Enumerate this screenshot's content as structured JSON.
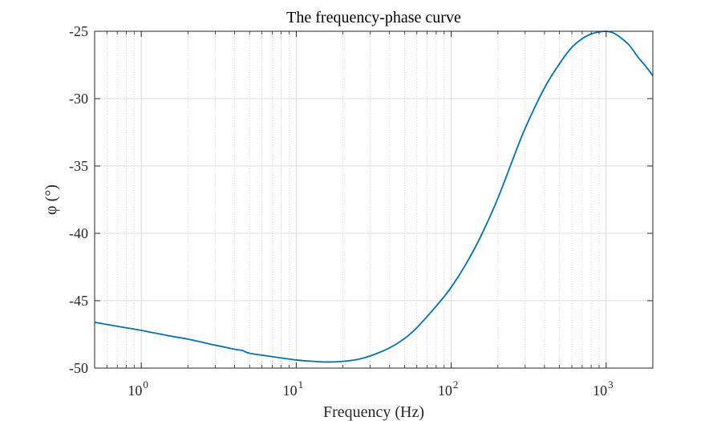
{
  "chart_data": {
    "type": "line",
    "title": "The frequency-phase curve",
    "xlabel": "Frequency (Hz)",
    "ylabel": "φ (°)",
    "xscale": "log",
    "xlim": [
      0.5,
      2000
    ],
    "ylim": [
      -50,
      -25
    ],
    "grid": true,
    "minor_grid": true,
    "xticks": [
      {
        "base": "10",
        "exp": "0",
        "value": 1
      },
      {
        "base": "10",
        "exp": "1",
        "value": 10
      },
      {
        "base": "10",
        "exp": "2",
        "value": 100
      },
      {
        "base": "10",
        "exp": "3",
        "value": 1000
      }
    ],
    "yticks": [
      {
        "label": "-25",
        "value": -25
      },
      {
        "label": "-30",
        "value": -30
      },
      {
        "label": "-35",
        "value": -35
      },
      {
        "label": "-40",
        "value": -40
      },
      {
        "label": "-45",
        "value": -45
      },
      {
        "label": "-50",
        "value": -50
      }
    ],
    "series": [
      {
        "color": "#0072BD",
        "x": [
          0.5,
          0.7,
          1,
          1.5,
          2,
          3,
          4,
          4.5,
          5,
          7,
          10,
          13,
          16,
          20,
          25,
          30,
          40,
          50,
          60,
          80,
          100,
          130,
          160,
          200,
          250,
          300,
          400,
          500,
          600,
          700,
          800,
          900,
          1000,
          1100,
          1200,
          1400,
          1600,
          1800,
          2000
        ],
        "y": [
          -46.6,
          -46.9,
          -47.2,
          -47.6,
          -47.85,
          -48.3,
          -48.6,
          -48.7,
          -48.9,
          -49.15,
          -49.4,
          -49.5,
          -49.55,
          -49.5,
          -49.35,
          -49.1,
          -48.5,
          -47.8,
          -47.0,
          -45.4,
          -44.0,
          -41.9,
          -39.9,
          -37.4,
          -34.5,
          -32.2,
          -29.2,
          -27.4,
          -26.2,
          -25.55,
          -25.2,
          -25.05,
          -25.0,
          -25.1,
          -25.35,
          -26.0,
          -26.9,
          -27.6,
          -28.3
        ]
      }
    ]
  }
}
